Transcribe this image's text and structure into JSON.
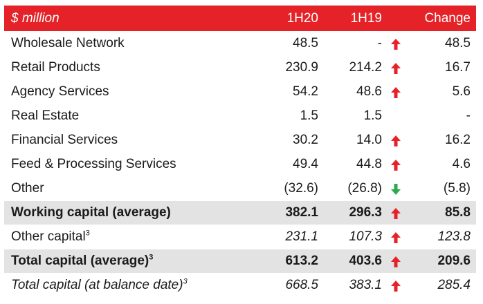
{
  "colors": {
    "header_bg": "#e52228",
    "up_arrow": "#e52228",
    "down_arrow": "#2fa84f",
    "shaded_row": "#e3e3e3"
  },
  "header": {
    "label": "$ million",
    "col1": "1H20",
    "col2": "1H19",
    "col3": "Change"
  },
  "rows": [
    {
      "label": "Wholesale Network",
      "sup": "",
      "v1h20": "48.5",
      "v1h19": "-",
      "arrow": "up-arrow-icon",
      "change": "48.5"
    },
    {
      "label": "Retail Products",
      "sup": "",
      "v1h20": "230.9",
      "v1h19": "214.2",
      "arrow": "up-arrow-icon",
      "change": "16.7"
    },
    {
      "label": "Agency Services",
      "sup": "",
      "v1h20": "54.2",
      "v1h19": "48.6",
      "arrow": "up-arrow-icon",
      "change": "5.6"
    },
    {
      "label": "Real Estate",
      "sup": "",
      "v1h20": "1.5",
      "v1h19": "1.5",
      "arrow": "",
      "change": "-"
    },
    {
      "label": "Financial Services",
      "sup": "",
      "v1h20": "30.2",
      "v1h19": "14.0",
      "arrow": "up-arrow-icon",
      "change": "16.2"
    },
    {
      "label": "Feed & Processing Services",
      "sup": "",
      "v1h20": "49.4",
      "v1h19": "44.8",
      "arrow": "up-arrow-icon",
      "change": "4.6"
    },
    {
      "label": "Other",
      "sup": "",
      "v1h20": "(32.6)",
      "v1h19": "(26.8)",
      "arrow": "down-arrow-icon",
      "change": "(5.8)"
    },
    {
      "label": "Working capital (average)",
      "sup": "",
      "v1h20": "382.1",
      "v1h19": "296.3",
      "arrow": "up-arrow-icon",
      "change": "85.8"
    },
    {
      "label": "Other capital",
      "sup": "3",
      "v1h20": "231.1",
      "v1h19": "107.3",
      "arrow": "up-arrow-icon",
      "change": "123.8"
    },
    {
      "label": "Total capital (average)",
      "sup": "3",
      "v1h20": "613.2",
      "v1h19": "403.6",
      "arrow": "up-arrow-icon",
      "change": "209.6"
    },
    {
      "label": "Total capital (at balance date)",
      "sup": "3",
      "v1h20": "668.5",
      "v1h19": "383.1",
      "arrow": "up-arrow-icon",
      "change": "285.4"
    }
  ]
}
